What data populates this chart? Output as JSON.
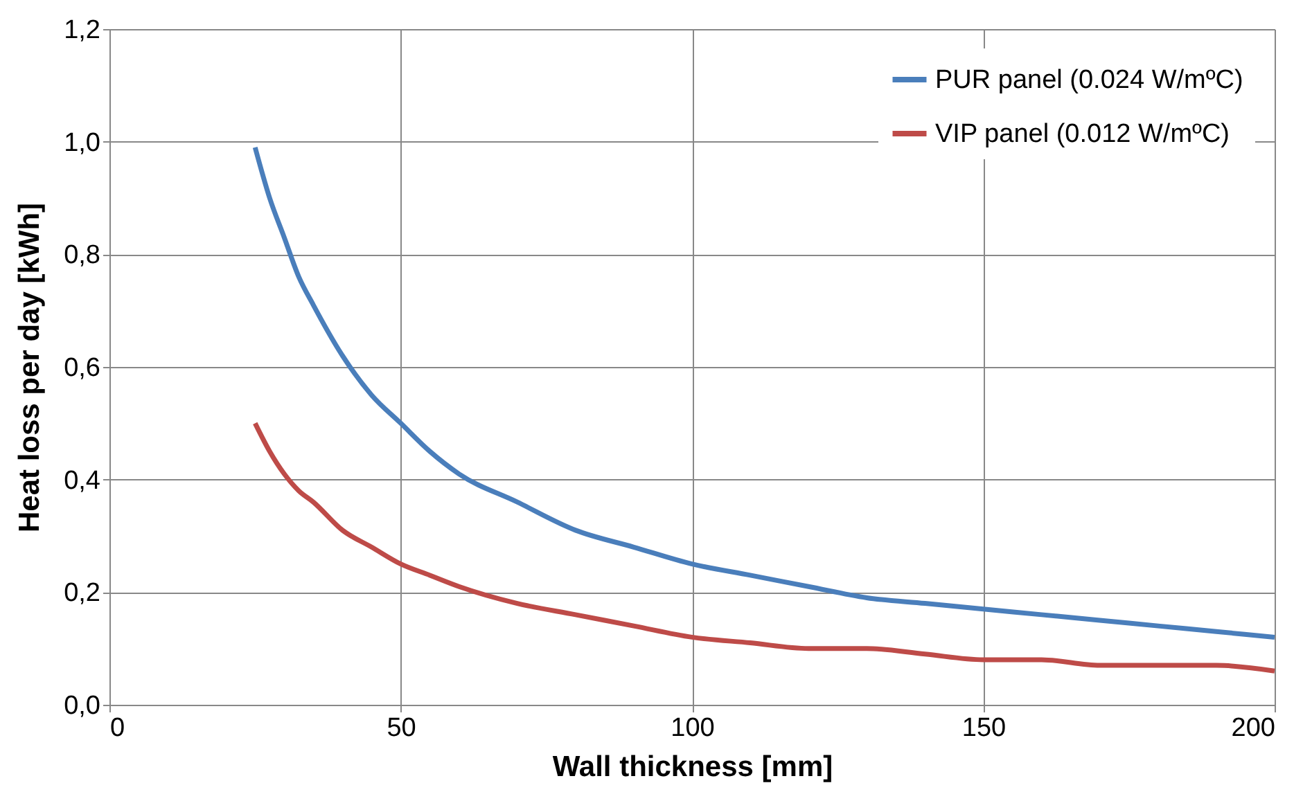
{
  "chart_data": {
    "type": "line",
    "xlabel": "Wall thickness [mm]",
    "ylabel": "Heat loss per day [kWh]",
    "x": [
      25,
      27.5,
      30,
      32.5,
      35,
      40,
      45,
      50,
      55,
      60,
      70,
      80,
      90,
      100,
      110,
      120,
      130,
      140,
      150,
      160,
      170,
      180,
      190,
      200
    ],
    "series": [
      {
        "name": "PUR panel (0.024 W/mºC)",
        "color": "#4a7ebb",
        "values": [
          0.99,
          0.9,
          0.83,
          0.76,
          0.71,
          0.62,
          0.55,
          0.5,
          0.45,
          0.41,
          0.36,
          0.31,
          0.28,
          0.25,
          0.23,
          0.21,
          0.19,
          0.18,
          0.17,
          0.16,
          0.15,
          0.14,
          0.13,
          0.12
        ]
      },
      {
        "name": "VIP panel (0.012 W/mºC)",
        "color": "#be4b48",
        "values": [
          0.5,
          0.45,
          0.41,
          0.38,
          0.36,
          0.31,
          0.28,
          0.25,
          0.23,
          0.21,
          0.18,
          0.16,
          0.14,
          0.12,
          0.11,
          0.1,
          0.1,
          0.09,
          0.08,
          0.08,
          0.07,
          0.07,
          0.07,
          0.06
        ]
      }
    ],
    "xlim": [
      0,
      200
    ],
    "xticks": [
      0,
      50,
      100,
      150,
      200
    ],
    "ylim": [
      0,
      1.2
    ],
    "yticks": [
      {
        "value": 0,
        "label": "0,0"
      },
      {
        "value": 0.2,
        "label": "0,2"
      },
      {
        "value": 0.4,
        "label": "0,4"
      },
      {
        "value": 0.6,
        "label": "0,6"
      },
      {
        "value": 0.8,
        "label": "0,8"
      },
      {
        "value": 1,
        "label": "1,0"
      },
      {
        "value": 1.2,
        "label": "1,2"
      }
    ],
    "grid": true,
    "legend": "top right",
    "marker": "none",
    "line_style": "solid"
  }
}
